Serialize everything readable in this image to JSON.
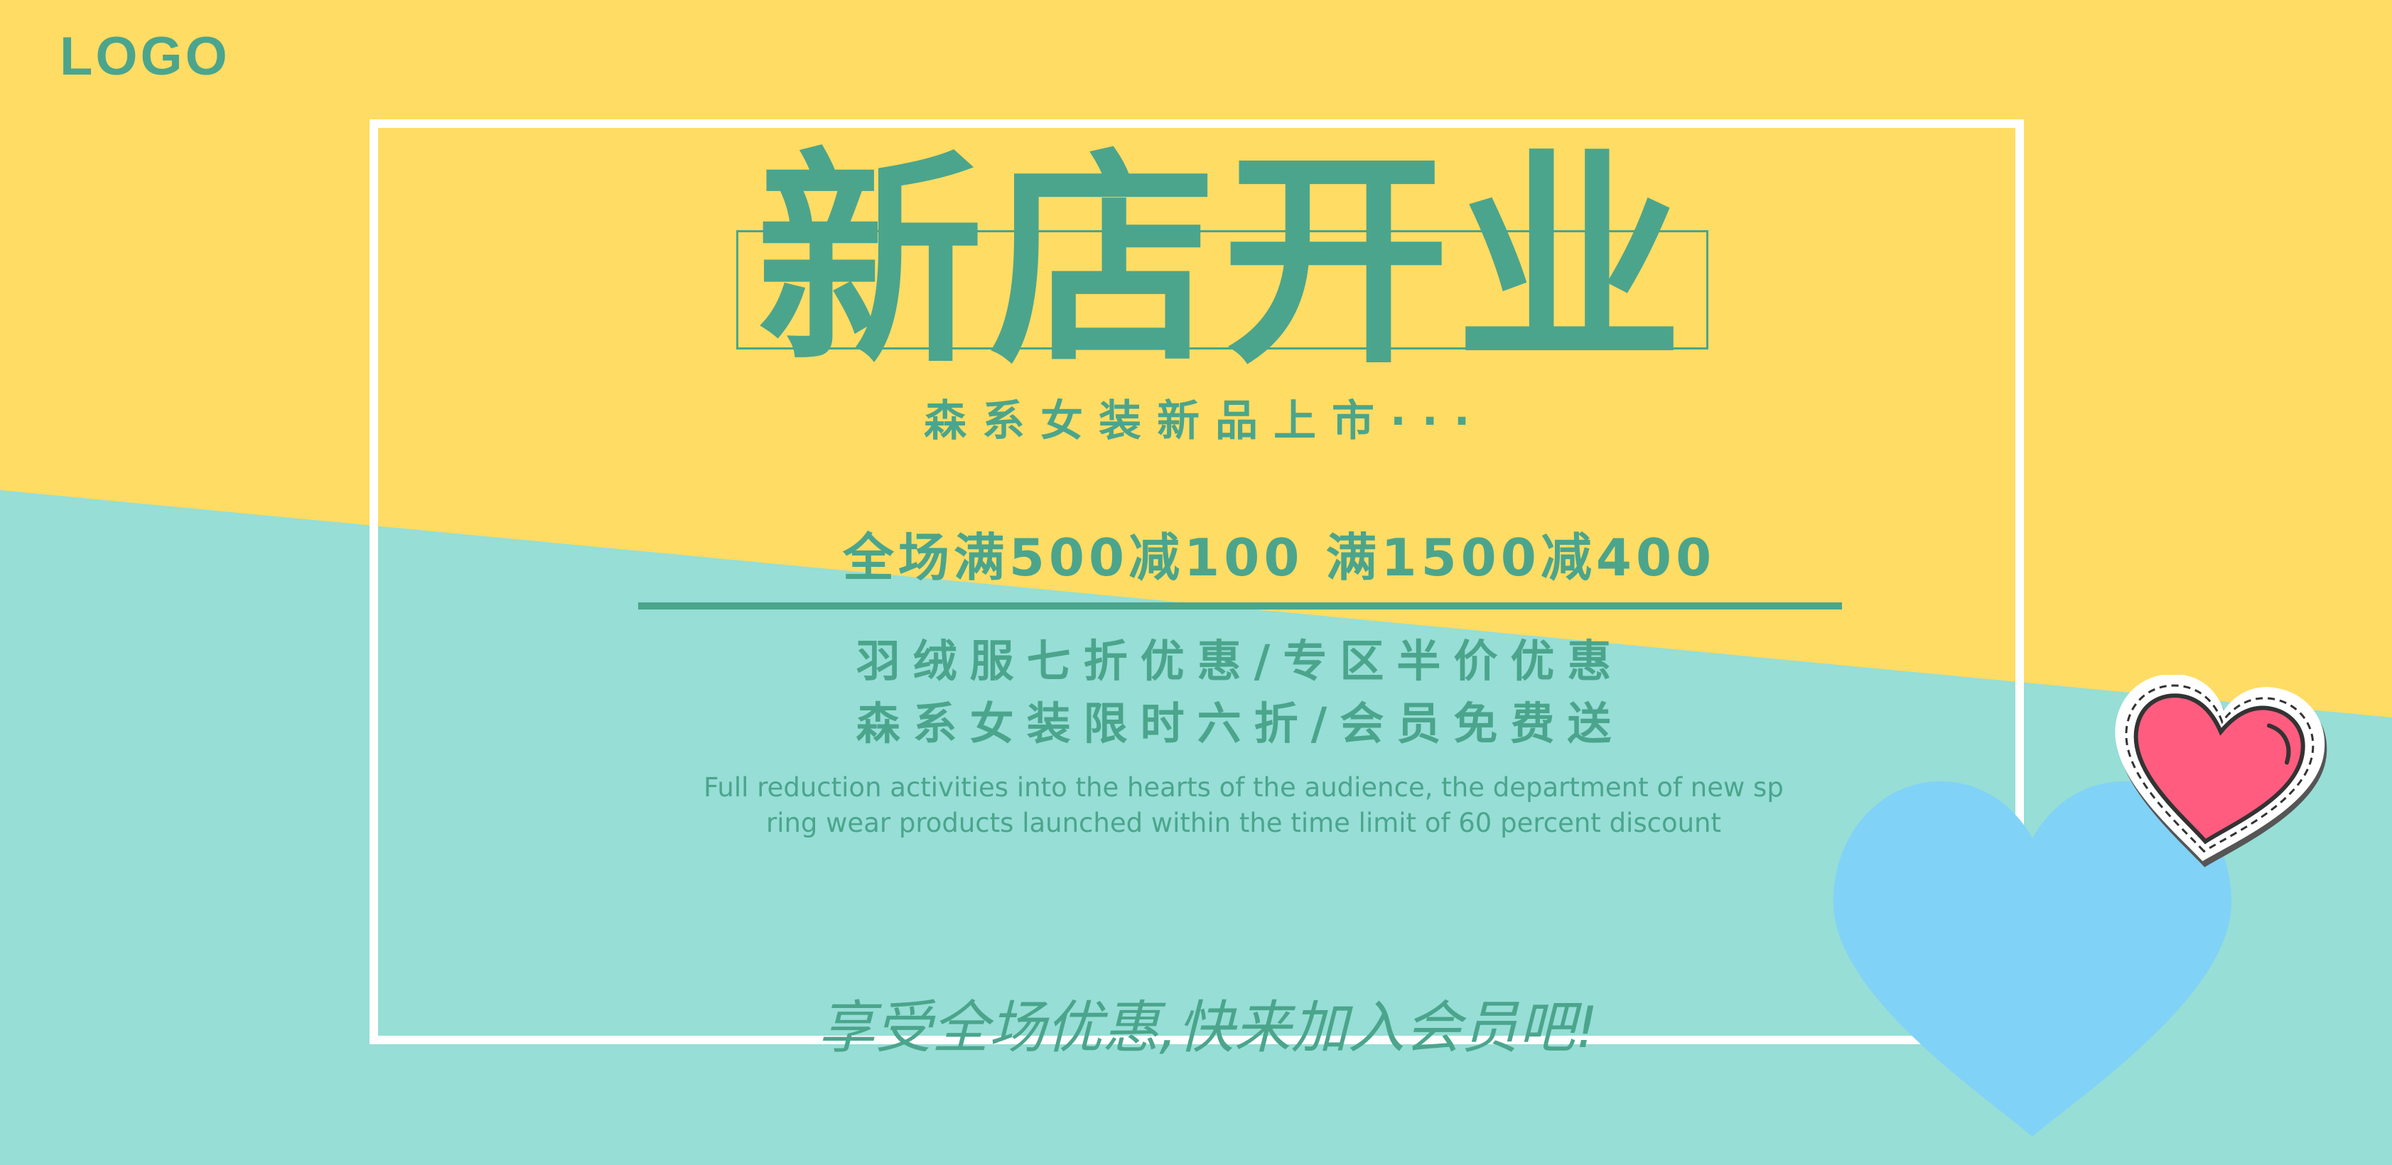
{
  "logo": {
    "text": "LOGO"
  },
  "banner": {
    "title": "新店开业",
    "subtitle": "森系女装新品上市···",
    "promo": "全场满500减100 满1500减400",
    "offer_line_1": "羽绒服七折优惠/专区半价优惠",
    "offer_line_2": "森系女装限时六折/会员免费送",
    "english_line_1": "Full reduction activities into the hearts of the audience, the department of new sp",
    "english_line_2": "ring wear products launched within the time limit of 60 percent discount",
    "cta": "享受全场优惠,快来加入会员吧!"
  },
  "colors": {
    "yellow": "#FFDC64",
    "teal_background": "#96DED6",
    "green_text": "#4BA58C",
    "frame": "#FFFFFF",
    "blue_heart": "#80D2F7",
    "pink_heart": "#FF5C7F"
  },
  "icons": {
    "big_heart": "heart-icon",
    "sticker_heart": "heart-sticker-icon"
  }
}
